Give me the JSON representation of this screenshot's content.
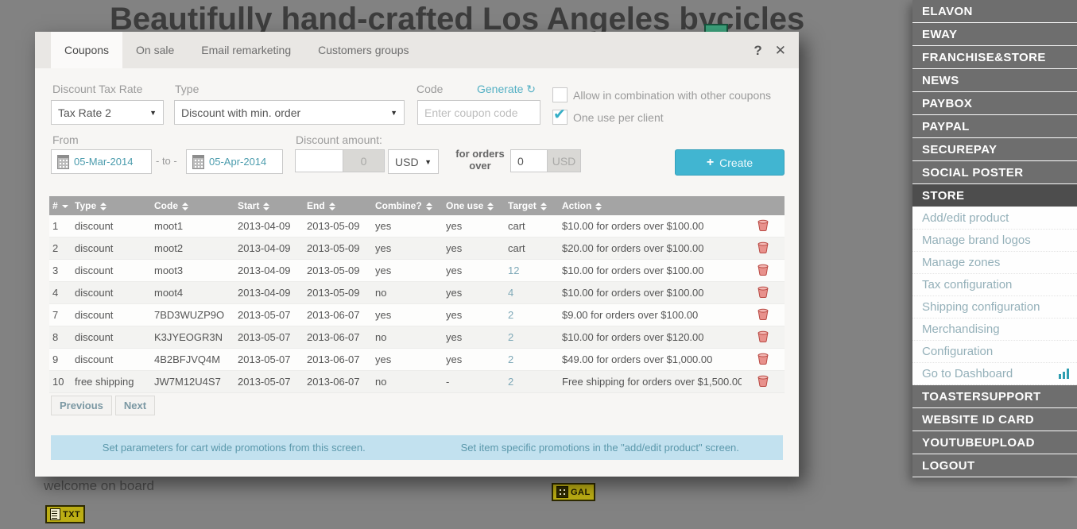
{
  "background": {
    "page_title": "Beautifully hand-crafted Los Angeles bycicles",
    "welcome_text": "welcome on board",
    "txt_badge": "TXT",
    "gal_badge": "GAL"
  },
  "modal": {
    "tabs": [
      {
        "label": "Coupons",
        "active": true
      },
      {
        "label": "On sale",
        "active": false
      },
      {
        "label": "Email remarketing",
        "active": false
      },
      {
        "label": "Customers groups",
        "active": false
      }
    ],
    "help_icon": "?",
    "close_icon": "✕",
    "form": {
      "tax_rate_label": "Discount Tax Rate",
      "tax_rate_value": "Tax Rate 2",
      "type_label": "Type",
      "type_value": "Discount with min. order",
      "code_label": "Code",
      "generate_label": "Generate",
      "refresh_icon": "↻",
      "code_placeholder": "Enter coupon code",
      "combo_checkbox_label": "Allow in combination with other coupons",
      "combo_checked": false,
      "one_use_checkbox_label": "One use per client",
      "one_use_checked": true,
      "from_label": "From",
      "date_from": "05-Mar-2014",
      "date_separator": "- to -",
      "date_to": "05-Apr-2014",
      "discount_amount_label": "Discount amount:",
      "discount_amount_value": "",
      "discount_amount_addon": "0",
      "currency_value": "USD",
      "for_orders_over_label": "for orders over",
      "orders_over_value": "0",
      "orders_over_addon": "USD",
      "create_label": "Create",
      "create_plus_icon": "+"
    },
    "table": {
      "headers": [
        "#",
        "Type",
        "Code",
        "Start",
        "End",
        "Combine?",
        "One use",
        "Target",
        "Action",
        ""
      ],
      "rows": [
        {
          "num": "1",
          "type": "discount",
          "code": "moot1",
          "start": "2013-04-09",
          "end": "2013-05-09",
          "combine": "yes",
          "one_use": "yes",
          "target": "cart",
          "target_is_link": false,
          "action": "$10.00 for orders over $100.00"
        },
        {
          "num": "2",
          "type": "discount",
          "code": "moot2",
          "start": "2013-04-09",
          "end": "2013-05-09",
          "combine": "yes",
          "one_use": "yes",
          "target": "cart",
          "target_is_link": false,
          "action": "$20.00 for orders over $100.00"
        },
        {
          "num": "3",
          "type": "discount",
          "code": "moot3",
          "start": "2013-04-09",
          "end": "2013-05-09",
          "combine": "yes",
          "one_use": "yes",
          "target": "12",
          "target_is_link": true,
          "action": "$10.00 for orders over $100.00"
        },
        {
          "num": "4",
          "type": "discount",
          "code": "moot4",
          "start": "2013-04-09",
          "end": "2013-05-09",
          "combine": "no",
          "one_use": "yes",
          "target": "4",
          "target_is_link": true,
          "action": "$10.00 for orders over $100.00"
        },
        {
          "num": "7",
          "type": "discount",
          "code": "7BD3WUZP9O",
          "start": "2013-05-07",
          "end": "2013-06-07",
          "combine": "yes",
          "one_use": "yes",
          "target": "2",
          "target_is_link": true,
          "action": "$9.00 for orders over $100.00"
        },
        {
          "num": "8",
          "type": "discount",
          "code": "K3JYEOGR3N",
          "start": "2013-05-07",
          "end": "2013-06-07",
          "combine": "no",
          "one_use": "yes",
          "target": "2",
          "target_is_link": true,
          "action": "$10.00 for orders over $120.00"
        },
        {
          "num": "9",
          "type": "discount",
          "code": "4B2BFJVQ4M",
          "start": "2013-05-07",
          "end": "2013-06-07",
          "combine": "yes",
          "one_use": "yes",
          "target": "2",
          "target_is_link": true,
          "action": "$49.00 for orders over $1,000.00"
        },
        {
          "num": "10",
          "type": "free shipping",
          "code": "JW7M12U4S7",
          "start": "2013-05-07",
          "end": "2013-06-07",
          "combine": "no",
          "one_use": "-",
          "target": "2",
          "target_is_link": true,
          "action": "Free shipping for orders over $1,500.00"
        }
      ]
    },
    "pagination": {
      "previous": "Previous",
      "next": "Next"
    },
    "footer_notes": [
      "Set parameters for cart wide promotions from this screen.",
      "Set item specific promotions in the \"add/edit product\" screen."
    ]
  },
  "sidebar": {
    "items_top": [
      "ELAVON",
      "EWAY",
      "FRANCHISE&STORE",
      "NEWS",
      "PAYBOX",
      "PAYPAL",
      "SECUREPAY",
      "SOCIAL POSTER"
    ],
    "active_item": "STORE",
    "submenu": [
      "Add/edit product",
      "Manage brand logos",
      "Manage zones",
      "Tax configuration",
      "Shipping configuration",
      "Merchandising",
      "Configuration",
      "Go to Dashboard"
    ],
    "items_bottom": [
      "TOASTERSUPPORT",
      "WEBSITE ID CARD",
      "YOUTUBEUPLOAD",
      "LOGOUT"
    ]
  },
  "colors": {
    "accent_teal": "#41b5d1",
    "link_teal": "#54b0c4",
    "sidebar_gray": "#6e6e6e",
    "sidebar_active": "#4d4d4d",
    "table_header_gray": "#a4a4a4",
    "info_bar_blue": "#c2e1ef",
    "trash_red": "#e08a85",
    "badge_yellow": "#bcae14"
  }
}
